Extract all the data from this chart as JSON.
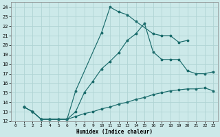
{
  "xlabel": "Humidex (Indice chaleur)",
  "ylabel": "",
  "bg_color": "#cce9e9",
  "grid_color": "#b0d4d4",
  "line_color": "#1a6b6b",
  "xlim": [
    -0.5,
    23.5
  ],
  "ylim": [
    12,
    24.5
  ],
  "xticks": [
    0,
    1,
    2,
    3,
    4,
    5,
    6,
    7,
    8,
    9,
    10,
    11,
    12,
    13,
    14,
    15,
    16,
    17,
    18,
    19,
    20,
    21,
    22,
    23
  ],
  "yticks": [
    12,
    13,
    14,
    15,
    16,
    17,
    18,
    19,
    20,
    21,
    22,
    23,
    24
  ],
  "line1_x": [
    1,
    2,
    3,
    4,
    5,
    6,
    7,
    10,
    11,
    12,
    13,
    14,
    16,
    17,
    18,
    19,
    20
  ],
  "line1_y": [
    13.5,
    13.0,
    12.2,
    12.2,
    12.2,
    12.2,
    15.2,
    21.3,
    24.0,
    23.5,
    23.2,
    22.5,
    21.2,
    21.0,
    21.0,
    20.3,
    20.5
  ],
  "line2_x": [
    1,
    2,
    3,
    4,
    5,
    6,
    7,
    8,
    9,
    10,
    11,
    12,
    13,
    14,
    15,
    16,
    17,
    18,
    19,
    20,
    21,
    22,
    23
  ],
  "line2_y": [
    13.5,
    13.0,
    12.2,
    12.2,
    12.2,
    12.2,
    13.0,
    15.0,
    16.2,
    17.5,
    18.3,
    19.2,
    20.5,
    21.2,
    22.3,
    19.3,
    18.5,
    18.5,
    18.5,
    17.3,
    17.0,
    17.0,
    17.2
  ],
  "line3_x": [
    1,
    2,
    3,
    4,
    5,
    6,
    7,
    8,
    9,
    10,
    11,
    12,
    13,
    14,
    15,
    16,
    17,
    18,
    19,
    20,
    21,
    22,
    23
  ],
  "line3_y": [
    13.5,
    13.0,
    12.2,
    12.2,
    12.2,
    12.2,
    12.5,
    12.8,
    13.0,
    13.3,
    13.5,
    13.8,
    14.0,
    14.3,
    14.5,
    14.8,
    15.0,
    15.2,
    15.3,
    15.4,
    15.4,
    15.5,
    15.2
  ]
}
